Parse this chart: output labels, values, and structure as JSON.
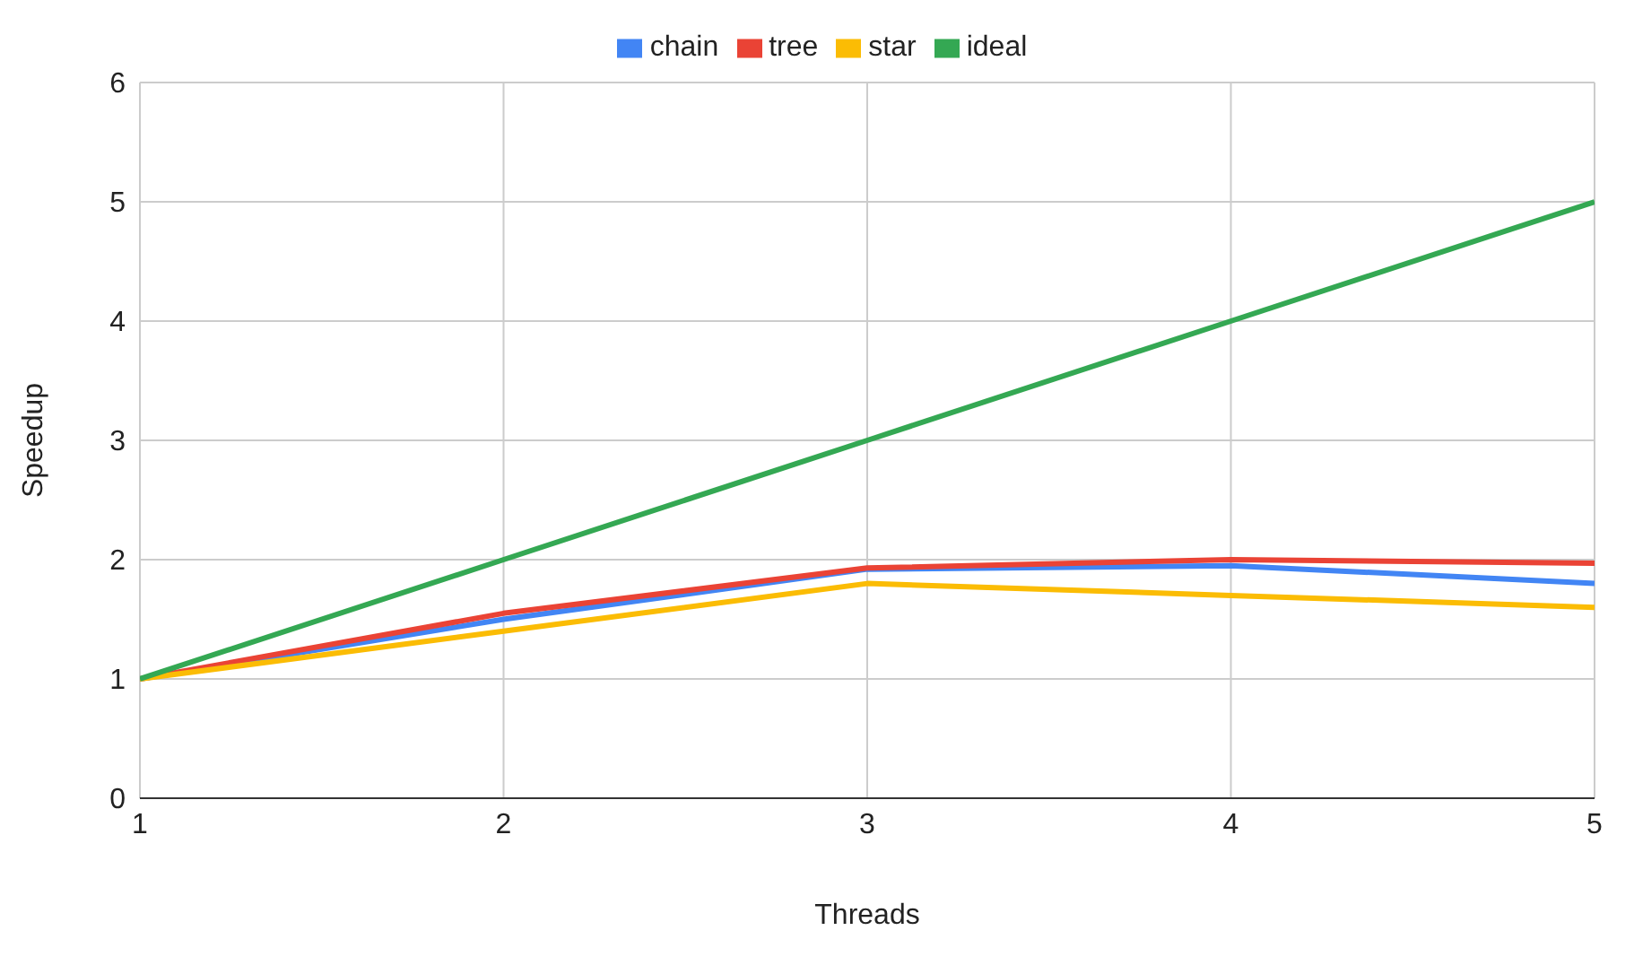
{
  "chart_data": {
    "type": "line",
    "xlabel": "Threads",
    "ylabel": "Speedup",
    "x": [
      1,
      2,
      3,
      4,
      5
    ],
    "series": [
      {
        "name": "chain",
        "color": "#4285f4",
        "values": [
          1,
          1.5,
          1.92,
          1.95,
          1.8
        ]
      },
      {
        "name": "tree",
        "color": "#ea4335",
        "values": [
          1,
          1.55,
          1.93,
          2.0,
          1.97
        ]
      },
      {
        "name": "star",
        "color": "#fbbc04",
        "values": [
          1,
          1.4,
          1.8,
          1.7,
          1.6
        ]
      },
      {
        "name": "ideal",
        "color": "#34a853",
        "values": [
          1,
          2,
          3,
          4,
          5
        ]
      }
    ],
    "xlim": [
      1,
      5
    ],
    "xticks": [
      1,
      2,
      3,
      4,
      5
    ],
    "ylim": [
      0,
      6
    ],
    "yticks": [
      0,
      1,
      2,
      3,
      4,
      5,
      6
    ],
    "grid": true,
    "legend": "top",
    "marker": "none",
    "line_style": "solid"
  }
}
